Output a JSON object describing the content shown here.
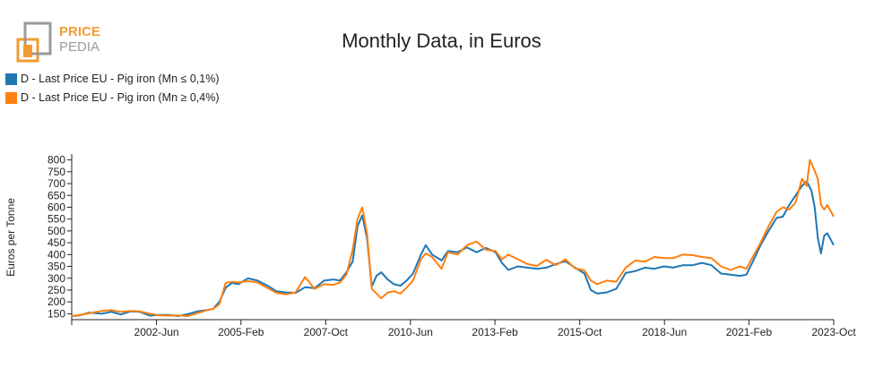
{
  "logo": {
    "word_top": "PRICE",
    "word_bottom": "PEDIA"
  },
  "chart_data": {
    "type": "line",
    "title": "Monthly Data, in Euros",
    "xlabel": "",
    "ylabel": "Euros per Tonne",
    "ylim": [
      125,
      825
    ],
    "xlim": [
      1999.75,
      2023.75
    ],
    "yticks": [
      150,
      200,
      250,
      300,
      350,
      400,
      450,
      500,
      550,
      600,
      650,
      700,
      750,
      800
    ],
    "xticks": [
      {
        "label": "2002-Jun",
        "value": 2002.42
      },
      {
        "label": "2005-Feb",
        "value": 2005.08
      },
      {
        "label": "2007-Oct",
        "value": 2007.75
      },
      {
        "label": "2010-Jun",
        "value": 2010.42
      },
      {
        "label": "2013-Feb",
        "value": 2013.08
      },
      {
        "label": "2015-Oct",
        "value": 2015.75
      },
      {
        "label": "2018-Jun",
        "value": 2018.42
      },
      {
        "label": "2021-Feb",
        "value": 2021.08
      },
      {
        "label": "2023-Oct",
        "value": 2023.75
      }
    ],
    "series": [
      {
        "name": "D - Last Price EU - Pig iron (Mn ≤ 0,1%)",
        "color": "#1f77b4",
        "points": [
          [
            1999.75,
            140
          ],
          [
            2000.0,
            143
          ],
          [
            2000.3,
            155
          ],
          [
            2000.7,
            150
          ],
          [
            2001.0,
            158
          ],
          [
            2001.3,
            147
          ],
          [
            2001.6,
            160
          ],
          [
            2001.9,
            158
          ],
          [
            2002.2,
            142
          ],
          [
            2002.5,
            145
          ],
          [
            2002.8,
            145
          ],
          [
            2003.1,
            140
          ],
          [
            2003.4,
            148
          ],
          [
            2003.7,
            160
          ],
          [
            2004.0,
            165
          ],
          [
            2004.2,
            170
          ],
          [
            2004.4,
            200
          ],
          [
            2004.6,
            260
          ],
          [
            2004.8,
            280
          ],
          [
            2005.0,
            275
          ],
          [
            2005.3,
            300
          ],
          [
            2005.6,
            290
          ],
          [
            2005.9,
            270
          ],
          [
            2006.2,
            245
          ],
          [
            2006.5,
            240
          ],
          [
            2006.8,
            238
          ],
          [
            2007.1,
            262
          ],
          [
            2007.4,
            258
          ],
          [
            2007.7,
            290
          ],
          [
            2008.0,
            295
          ],
          [
            2008.2,
            290
          ],
          [
            2008.4,
            325
          ],
          [
            2008.6,
            370
          ],
          [
            2008.75,
            520
          ],
          [
            2008.9,
            565
          ],
          [
            2009.05,
            470
          ],
          [
            2009.2,
            265
          ],
          [
            2009.35,
            310
          ],
          [
            2009.5,
            325
          ],
          [
            2009.7,
            295
          ],
          [
            2009.9,
            275
          ],
          [
            2010.1,
            268
          ],
          [
            2010.3,
            290
          ],
          [
            2010.5,
            320
          ],
          [
            2010.75,
            400
          ],
          [
            2010.9,
            440
          ],
          [
            2011.1,
            400
          ],
          [
            2011.4,
            375
          ],
          [
            2011.6,
            415
          ],
          [
            2011.9,
            410
          ],
          [
            2012.2,
            430
          ],
          [
            2012.5,
            410
          ],
          [
            2012.8,
            428
          ],
          [
            2013.1,
            410
          ],
          [
            2013.3,
            365
          ],
          [
            2013.5,
            335
          ],
          [
            2013.8,
            350
          ],
          [
            2014.1,
            345
          ],
          [
            2014.4,
            340
          ],
          [
            2014.7,
            345
          ],
          [
            2015.0,
            360
          ],
          [
            2015.3,
            372
          ],
          [
            2015.6,
            345
          ],
          [
            2015.9,
            320
          ],
          [
            2016.1,
            250
          ],
          [
            2016.3,
            235
          ],
          [
            2016.6,
            240
          ],
          [
            2016.9,
            255
          ],
          [
            2017.2,
            322
          ],
          [
            2017.5,
            330
          ],
          [
            2017.8,
            345
          ],
          [
            2018.1,
            340
          ],
          [
            2018.4,
            350
          ],
          [
            2018.7,
            345
          ],
          [
            2019.0,
            355
          ],
          [
            2019.3,
            355
          ],
          [
            2019.6,
            365
          ],
          [
            2019.9,
            355
          ],
          [
            2020.2,
            320
          ],
          [
            2020.5,
            315
          ],
          [
            2020.8,
            310
          ],
          [
            2021.0,
            315
          ],
          [
            2021.2,
            370
          ],
          [
            2021.45,
            440
          ],
          [
            2021.7,
            500
          ],
          [
            2021.95,
            555
          ],
          [
            2022.15,
            560
          ],
          [
            2022.35,
            610
          ],
          [
            2022.55,
            650
          ],
          [
            2022.75,
            690
          ],
          [
            2022.9,
            710
          ],
          [
            2023.05,
            670
          ],
          [
            2023.15,
            600
          ],
          [
            2023.25,
            470
          ],
          [
            2023.35,
            405
          ],
          [
            2023.45,
            480
          ],
          [
            2023.55,
            490
          ],
          [
            2023.75,
            440
          ]
        ]
      },
      {
        "name": "D - Last Price EU - Pig iron (Mn ≥ 0,4%)",
        "color": "#ff7f0e",
        "points": [
          [
            1999.75,
            140
          ],
          [
            2000.0,
            145
          ],
          [
            2000.3,
            152
          ],
          [
            2000.7,
            162
          ],
          [
            2001.0,
            165
          ],
          [
            2001.3,
            158
          ],
          [
            2001.6,
            162
          ],
          [
            2001.9,
            160
          ],
          [
            2002.2,
            150
          ],
          [
            2002.5,
            143
          ],
          [
            2002.8,
            142
          ],
          [
            2003.1,
            143
          ],
          [
            2003.4,
            140
          ],
          [
            2003.7,
            152
          ],
          [
            2004.0,
            165
          ],
          [
            2004.2,
            170
          ],
          [
            2004.4,
            190
          ],
          [
            2004.6,
            280
          ],
          [
            2004.8,
            285
          ],
          [
            2005.0,
            282
          ],
          [
            2005.3,
            288
          ],
          [
            2005.6,
            282
          ],
          [
            2005.9,
            260
          ],
          [
            2006.2,
            238
          ],
          [
            2006.5,
            232
          ],
          [
            2006.8,
            240
          ],
          [
            2007.1,
            305
          ],
          [
            2007.4,
            255
          ],
          [
            2007.7,
            275
          ],
          [
            2008.0,
            272
          ],
          [
            2008.2,
            282
          ],
          [
            2008.4,
            315
          ],
          [
            2008.6,
            420
          ],
          [
            2008.75,
            550
          ],
          [
            2008.9,
            600
          ],
          [
            2009.05,
            490
          ],
          [
            2009.2,
            255
          ],
          [
            2009.35,
            235
          ],
          [
            2009.5,
            215
          ],
          [
            2009.7,
            240
          ],
          [
            2009.9,
            245
          ],
          [
            2010.1,
            235
          ],
          [
            2010.3,
            260
          ],
          [
            2010.5,
            290
          ],
          [
            2010.75,
            380
          ],
          [
            2010.9,
            405
          ],
          [
            2011.1,
            390
          ],
          [
            2011.4,
            340
          ],
          [
            2011.6,
            410
          ],
          [
            2011.9,
            400
          ],
          [
            2012.2,
            440
          ],
          [
            2012.5,
            455
          ],
          [
            2012.8,
            420
          ],
          [
            2013.1,
            415
          ],
          [
            2013.3,
            380
          ],
          [
            2013.5,
            400
          ],
          [
            2013.8,
            380
          ],
          [
            2014.1,
            360
          ],
          [
            2014.4,
            352
          ],
          [
            2014.7,
            378
          ],
          [
            2015.0,
            355
          ],
          [
            2015.3,
            380
          ],
          [
            2015.6,
            342
          ],
          [
            2015.9,
            333
          ],
          [
            2016.1,
            290
          ],
          [
            2016.3,
            275
          ],
          [
            2016.6,
            290
          ],
          [
            2016.9,
            285
          ],
          [
            2017.2,
            345
          ],
          [
            2017.5,
            375
          ],
          [
            2017.8,
            370
          ],
          [
            2018.1,
            390
          ],
          [
            2018.4,
            385
          ],
          [
            2018.7,
            385
          ],
          [
            2019.0,
            400
          ],
          [
            2019.3,
            398
          ],
          [
            2019.6,
            390
          ],
          [
            2019.9,
            385
          ],
          [
            2020.2,
            350
          ],
          [
            2020.5,
            335
          ],
          [
            2020.8,
            350
          ],
          [
            2021.0,
            340
          ],
          [
            2021.2,
            390
          ],
          [
            2021.45,
            450
          ],
          [
            2021.7,
            520
          ],
          [
            2021.95,
            580
          ],
          [
            2022.15,
            600
          ],
          [
            2022.35,
            590
          ],
          [
            2022.55,
            620
          ],
          [
            2022.75,
            720
          ],
          [
            2022.9,
            690
          ],
          [
            2023.0,
            800
          ],
          [
            2023.1,
            770
          ],
          [
            2023.25,
            720
          ],
          [
            2023.35,
            610
          ],
          [
            2023.45,
            590
          ],
          [
            2023.55,
            610
          ],
          [
            2023.75,
            560
          ]
        ]
      }
    ]
  }
}
